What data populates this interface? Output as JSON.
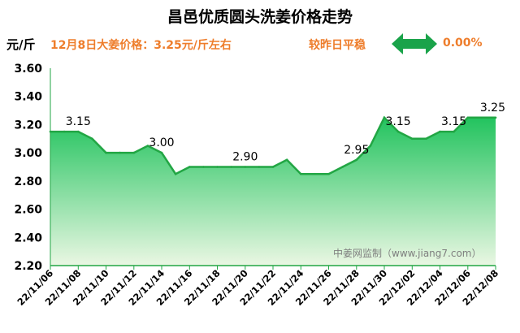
{
  "header": {
    "title": "昌邑优质圆头洗姜价格走势",
    "unit": "元/斤",
    "price_text": "12月8日大姜价格：3.25元/斤左右",
    "compare_label": "较昨日平稳",
    "change_pct": "0.00%"
  },
  "colors": {
    "line": "#22a644",
    "accent": "#ee7d2b",
    "arrow": "#1aa34a"
  },
  "watermark": "中姜网监制（www.jiang7.com）",
  "chart_data": {
    "type": "area",
    "title": "昌邑优质圆头洗姜价格走势",
    "ylabel": "元/斤",
    "ylim": [
      2.2,
      3.6
    ],
    "yticks": [
      "3.60",
      "3.40",
      "3.20",
      "3.00",
      "2.80",
      "2.60",
      "2.40",
      "2.20"
    ],
    "x": [
      "22/11/06",
      "22/11/07",
      "22/11/08",
      "22/11/09",
      "22/11/10",
      "22/11/11",
      "22/11/12",
      "22/11/13",
      "22/11/14",
      "22/11/15",
      "22/11/16",
      "22/11/17",
      "22/11/18",
      "22/11/19",
      "22/11/20",
      "22/11/21",
      "22/11/22",
      "22/11/23",
      "22/11/24",
      "22/11/25",
      "22/11/26",
      "22/11/27",
      "22/11/28",
      "22/11/29",
      "22/11/30",
      "22/12/01",
      "22/12/02",
      "22/12/03",
      "22/12/04",
      "22/12/05",
      "22/12/06",
      "22/12/07",
      "22/12/08"
    ],
    "xticks": [
      "22/11/06",
      "22/11/08",
      "22/11/10",
      "22/11/12",
      "22/11/14",
      "22/11/16",
      "22/11/18",
      "22/11/20",
      "22/11/22",
      "22/11/24",
      "22/11/26",
      "22/11/28",
      "22/11/30",
      "22/12/02",
      "22/12/04",
      "22/12/06",
      "22/12/08"
    ],
    "values": [
      3.15,
      3.15,
      3.15,
      3.1,
      3.0,
      3.0,
      3.0,
      3.05,
      3.0,
      2.85,
      2.9,
      2.9,
      2.9,
      2.9,
      2.9,
      2.9,
      2.9,
      2.95,
      2.85,
      2.85,
      2.85,
      2.9,
      2.95,
      3.05,
      3.25,
      3.15,
      3.1,
      3.1,
      3.15,
      3.15,
      3.25,
      3.25,
      3.25
    ],
    "data_labels": [
      {
        "x": "22/11/08",
        "text": "3.15"
      },
      {
        "x": "22/11/14",
        "text": "3.00"
      },
      {
        "x": "22/11/20",
        "text": "2.90"
      },
      {
        "x": "22/11/28",
        "text": "2.95"
      },
      {
        "x": "22/12/01",
        "text": "3.15"
      },
      {
        "x": "22/12/05",
        "text": "3.15"
      },
      {
        "x": "22/12/08",
        "text": "3.25"
      }
    ],
    "grid": false
  }
}
